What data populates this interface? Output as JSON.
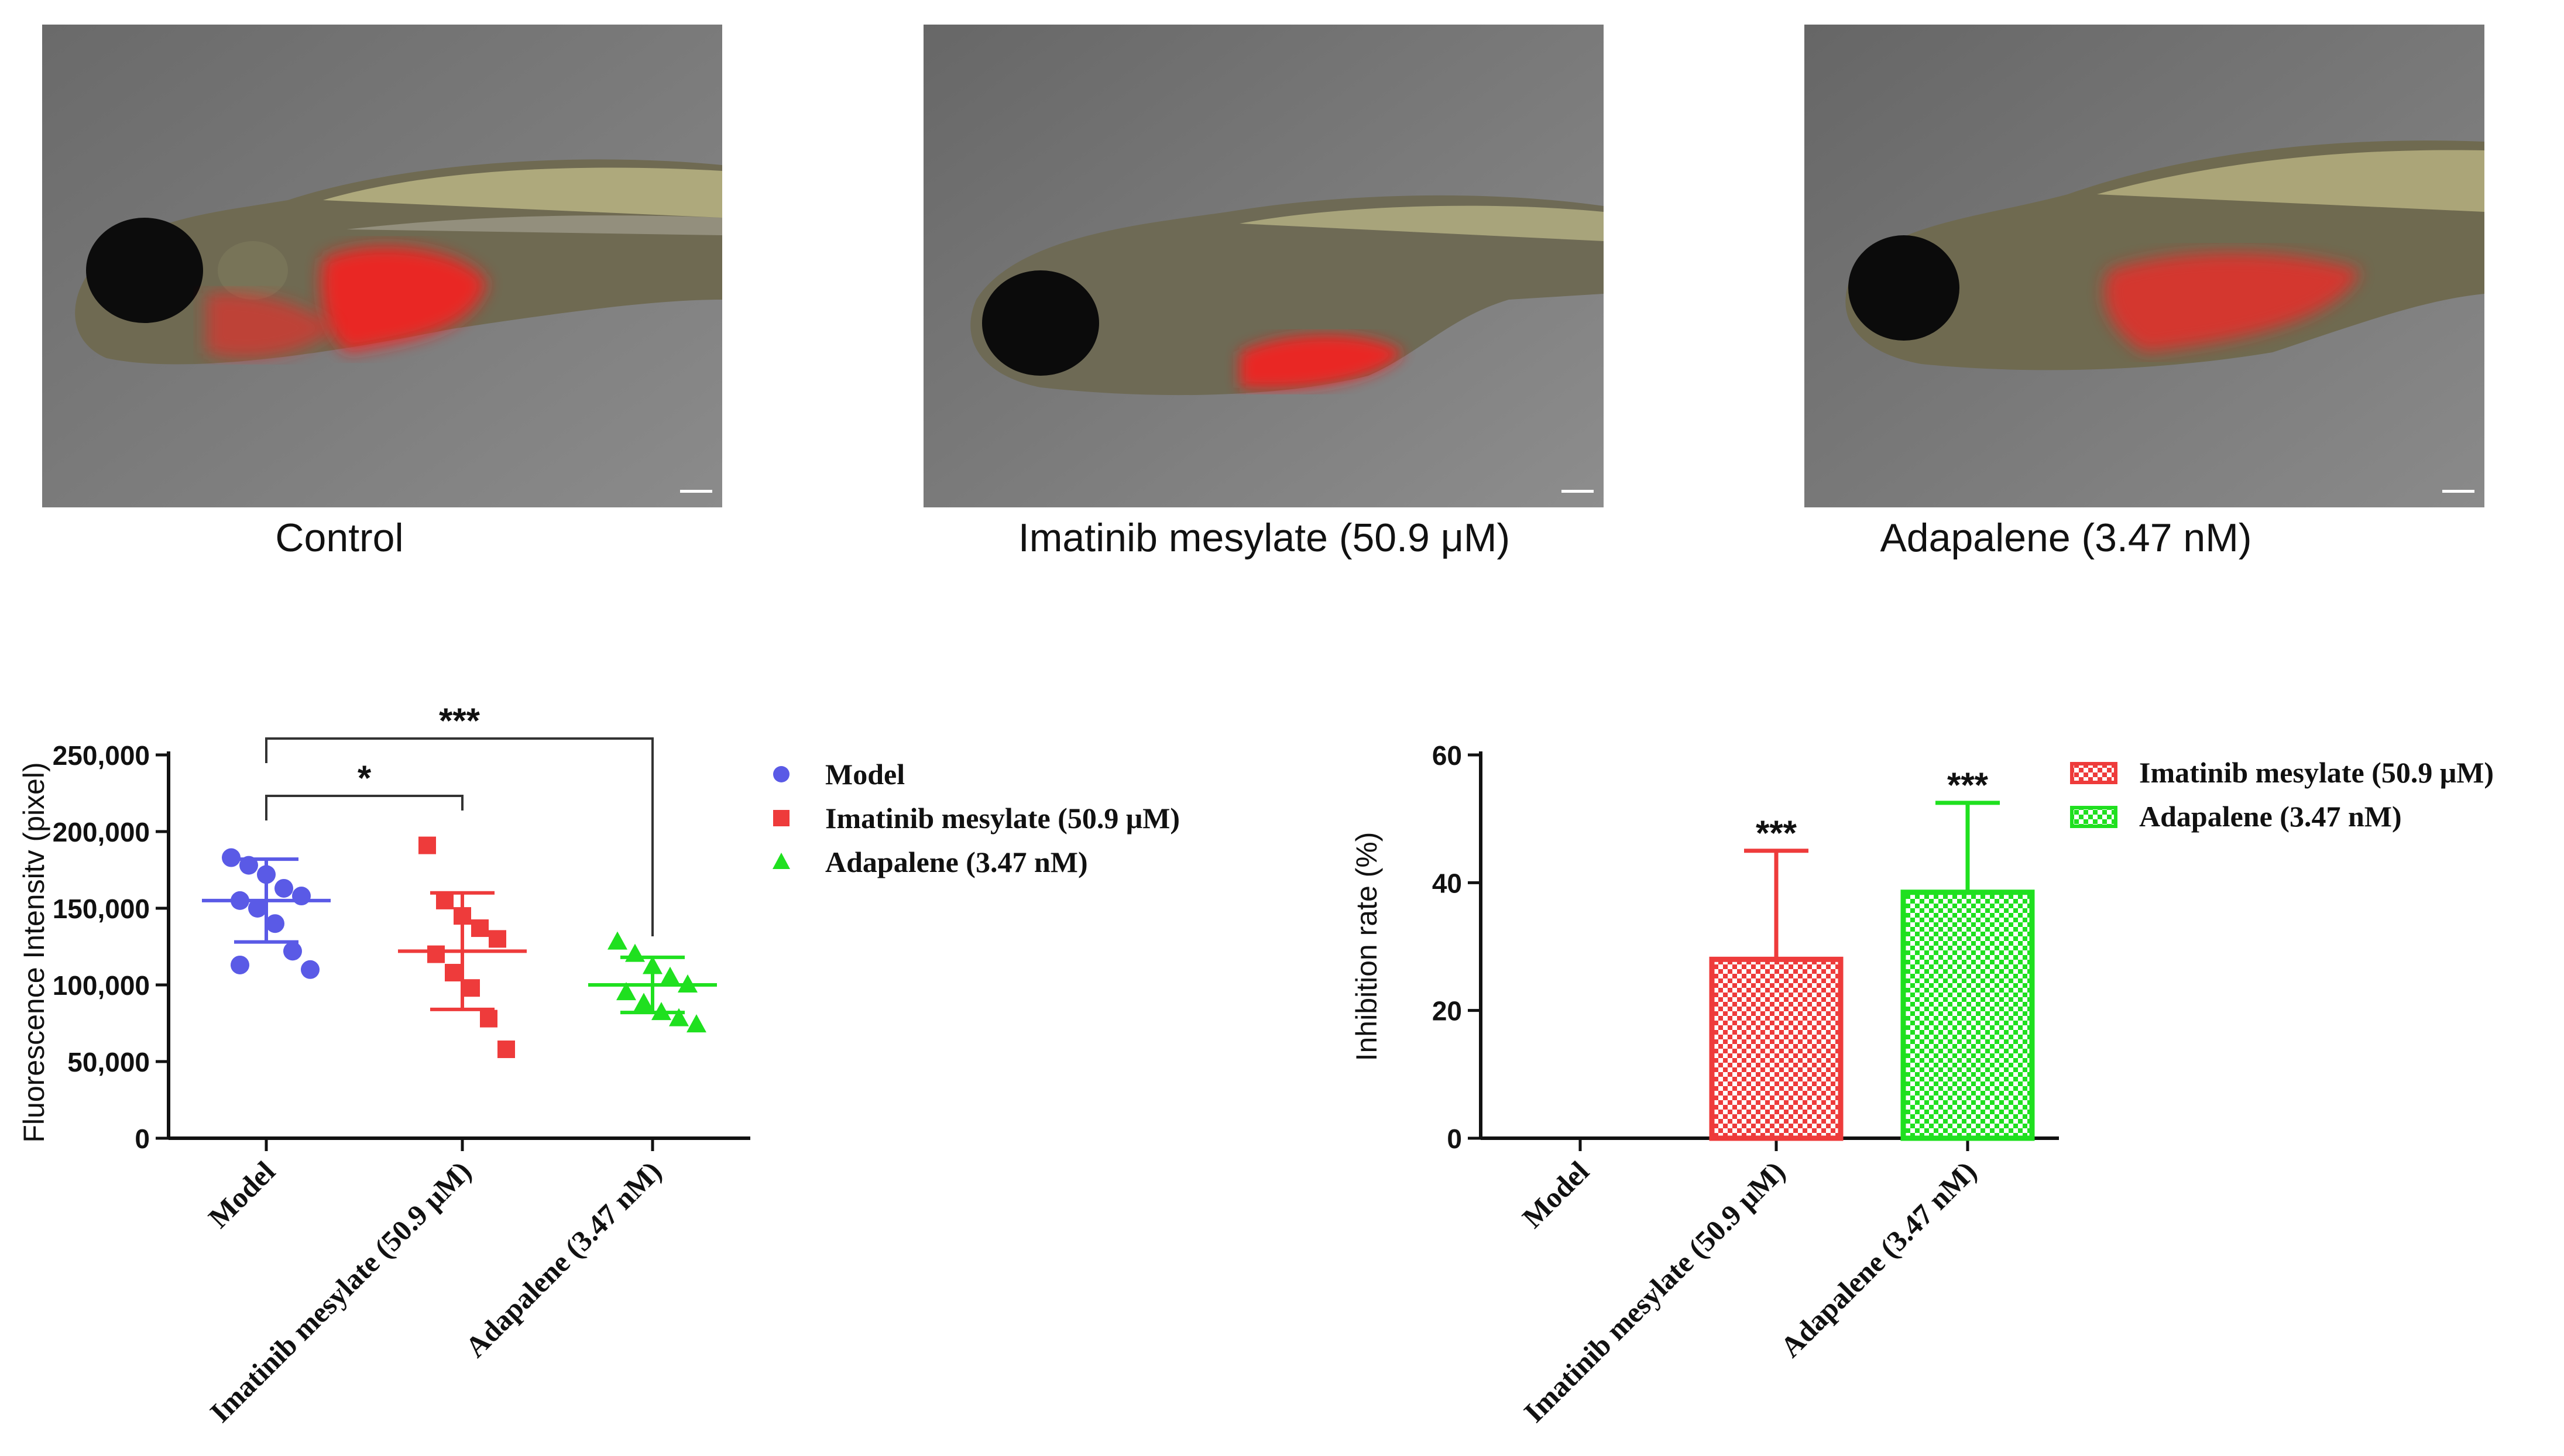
{
  "panels": {
    "control": {
      "caption": "Control"
    },
    "imatinib": {
      "caption": "Imatinib mesylate (50.9 μM)"
    },
    "adapalene": {
      "caption": "Adapalene (3.47 nM)"
    }
  },
  "colors": {
    "model": "#5a5ae6",
    "imatinib": "#ee3b3b",
    "adapalene": "#1fe01f",
    "axis": "#111111"
  },
  "chart_data": [
    {
      "type": "scatter",
      "ylabel": "Fluorescence Intensitv (pixel)",
      "ylim": [
        0,
        250000
      ],
      "yticks": [
        0,
        50000,
        100000,
        150000,
        200000,
        250000
      ],
      "ytick_labels": [
        "0",
        "50,000",
        "100,000",
        "150,000",
        "200,000",
        "250,000"
      ],
      "categories": [
        "Model",
        "Imatinib mesylate (50.9 μM)",
        "Adapalene (3.47 nM)"
      ],
      "series": [
        {
          "name": "Model",
          "marker": "circle",
          "mean": 155000,
          "sd": 27000,
          "values": [
            183000,
            178000,
            172000,
            163000,
            158000,
            155000,
            150000,
            140000,
            122000,
            110000,
            113000
          ]
        },
        {
          "name": "Imatinib mesylate (50.9 μM)",
          "marker": "square",
          "mean": 122000,
          "sd": 38000,
          "values": [
            191000,
            155000,
            145000,
            137000,
            130000,
            120000,
            108000,
            98000,
            78000,
            58000
          ]
        },
        {
          "name": "Adapalene (3.47 nM)",
          "marker": "triangle",
          "mean": 100000,
          "sd": 18000,
          "values": [
            128000,
            120000,
            112000,
            105000,
            100000,
            95000,
            88000,
            82000,
            78000,
            74000
          ]
        }
      ],
      "significance": [
        {
          "from": 0,
          "to": 2,
          "label": "***"
        },
        {
          "from": 0,
          "to": 1,
          "label": "*"
        }
      ],
      "legend": [
        "Model",
        "Imatinib mesylate (50.9 μM)",
        "Adapalene (3.47 nM)"
      ]
    },
    {
      "type": "bar",
      "ylabel": "Inhibition rate (%)",
      "ylim": [
        0,
        60
      ],
      "yticks": [
        0,
        20,
        40,
        60
      ],
      "ytick_labels": [
        "0",
        "20",
        "40",
        "60"
      ],
      "categories": [
        "Model",
        "Imatinib mesylate (50.9 μM)",
        "Adapalene (3.47 nM)"
      ],
      "values": [
        0,
        28,
        38.5
      ],
      "errors": [
        0,
        17,
        14
      ],
      "significance": [
        "",
        "***",
        "***"
      ],
      "legend": [
        "Imatinib mesylate (50.9 μM)",
        "Adapalene (3.47 nM)"
      ]
    }
  ]
}
